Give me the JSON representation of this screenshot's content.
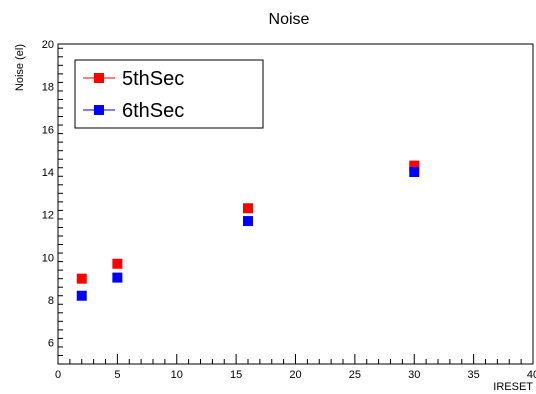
{
  "chart_data": {
    "type": "scatter",
    "title": "Noise",
    "xlabel": "IRESET",
    "ylabel": "Noise (el)",
    "xlim": [
      0,
      40
    ],
    "ylim": [
      5,
      20
    ],
    "x_ticks": [
      0,
      5,
      10,
      15,
      20,
      25,
      30,
      35,
      40
    ],
    "y_ticks": [
      6,
      8,
      10,
      12,
      14,
      16,
      18,
      20
    ],
    "grid": false,
    "legend_position": "top-left",
    "series": [
      {
        "name": "5thSec",
        "color": "#ff0000",
        "marker": "square",
        "points": [
          {
            "x": 2,
            "y": 9.0
          },
          {
            "x": 5,
            "y": 9.7
          },
          {
            "x": 16,
            "y": 12.3
          },
          {
            "x": 30,
            "y": 14.3
          }
        ]
      },
      {
        "name": "6thSec",
        "color": "#0000ff",
        "marker": "square",
        "points": [
          {
            "x": 2,
            "y": 8.2
          },
          {
            "x": 5,
            "y": 9.05
          },
          {
            "x": 16,
            "y": 11.7
          },
          {
            "x": 30,
            "y": 14.0
          }
        ]
      }
    ]
  }
}
